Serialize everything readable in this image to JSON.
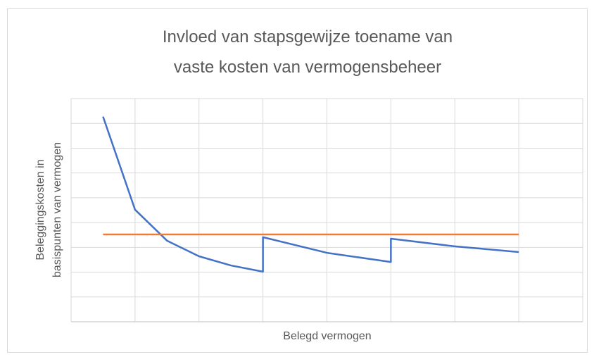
{
  "chart_data": {
    "type": "line",
    "title": [
      "Invloed van stapsgewijze toename van",
      "vaste kosten van vermogensbeheer"
    ],
    "y_label": [
      "Beleggingskosten in",
      "basispunten van vermogen"
    ],
    "x_label": "Belegd vermogen",
    "xlim": [
      0,
      16
    ],
    "xticks": [
      0,
      2,
      4,
      6,
      8,
      10,
      12,
      14,
      16
    ],
    "ylim": [
      0,
      9
    ],
    "yticks": [
      0,
      1,
      2,
      3,
      4,
      5,
      6,
      7,
      8,
      9
    ],
    "grid": true,
    "series": [
      {
        "color": "#4472c4",
        "x": [
          1,
          2,
          3,
          4,
          5,
          6,
          6,
          8,
          10,
          10,
          12,
          14
        ],
        "values": [
          8.27,
          4.52,
          3.27,
          2.64,
          2.27,
          2.02,
          3.41,
          2.78,
          2.41,
          3.35,
          3.04,
          2.81
        ]
      },
      {
        "color": "#ed7d31",
        "x": [
          1,
          14
        ],
        "values": [
          3.52,
          3.52
        ]
      }
    ]
  }
}
